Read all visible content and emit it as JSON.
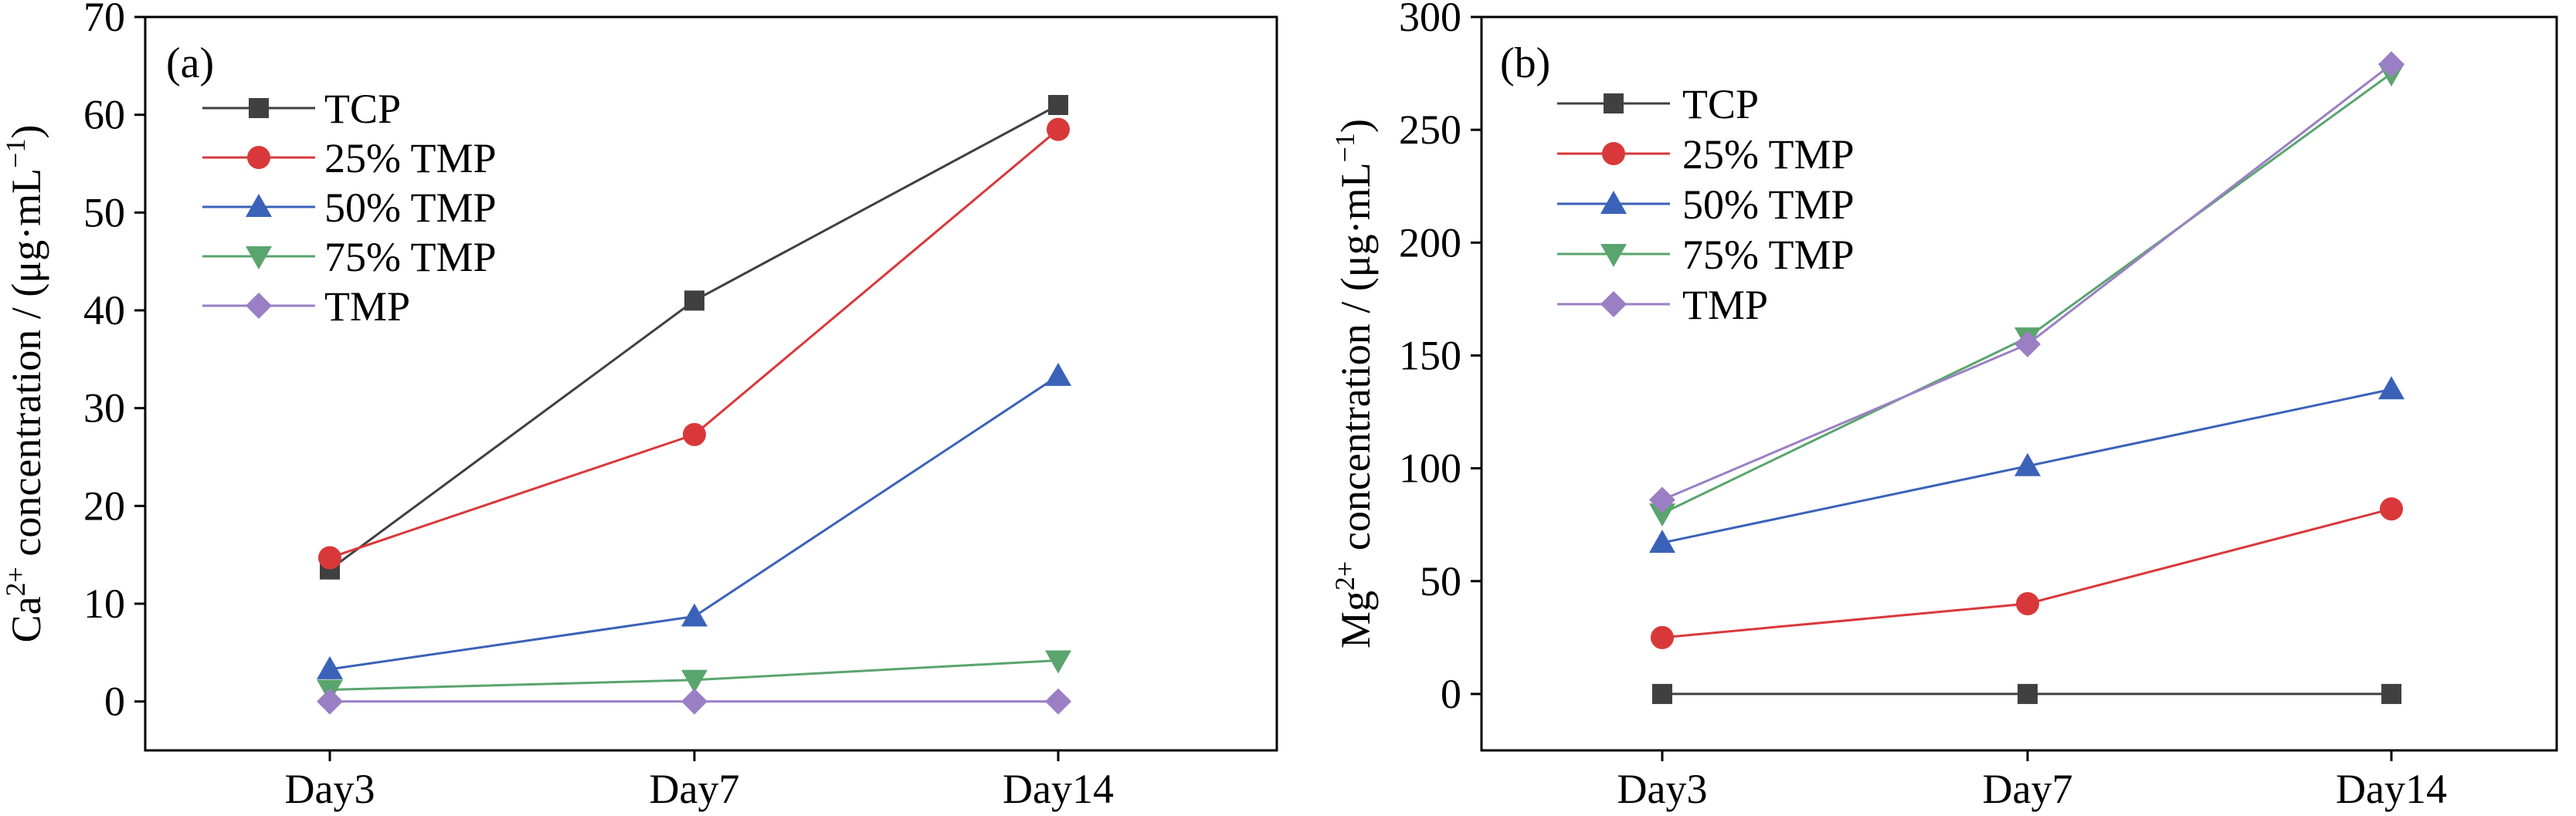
{
  "colors": {
    "TCP": "#404040",
    "25% TMP": "#d9383a",
    "50% TMP": "#3a62b8",
    "75% TMP": "#5aa46e",
    "TMP": "#9b7fc4"
  },
  "chart_data": [
    {
      "type": "line",
      "panel": "(a)",
      "categories": [
        "Day3",
        "Day7",
        "Day14"
      ],
      "ylabel": "Ca²⁺ concentration / (μg·mL⁻¹)",
      "ylabel_parts": {
        "base": "Ca",
        "sup": "2+",
        "rest": " concentration / (μg·mL",
        "unit_sup": "−1",
        "close": ")"
      },
      "ylim": [
        -5,
        70
      ],
      "yticks": [
        0,
        10,
        20,
        30,
        40,
        50,
        60,
        70
      ],
      "legend_position": "top-left",
      "series": [
        {
          "name": "TCP",
          "marker": "square",
          "values": [
            13.5,
            41.0,
            61.0
          ]
        },
        {
          "name": "25% TMP",
          "marker": "circle",
          "values": [
            14.7,
            27.3,
            58.5
          ]
        },
        {
          "name": "50% TMP",
          "marker": "triangle-up",
          "values": [
            3.3,
            8.7,
            33.3
          ]
        },
        {
          "name": "75% TMP",
          "marker": "triangle-down",
          "values": [
            1.2,
            2.2,
            4.2
          ]
        },
        {
          "name": "TMP",
          "marker": "diamond",
          "values": [
            0.0,
            0.0,
            0.0
          ]
        }
      ]
    },
    {
      "type": "line",
      "panel": "(b)",
      "categories": [
        "Day3",
        "Day7",
        "Day14"
      ],
      "ylabel": "Mg²⁺ concentration / (μg·mL⁻¹)",
      "ylabel_parts": {
        "base": "Mg",
        "sup": "2+",
        "rest": " concentration / (μg·mL",
        "unit_sup": "−1",
        "close": ")"
      },
      "ylim": [
        -25,
        300
      ],
      "yticks": [
        0,
        50,
        100,
        150,
        200,
        250,
        300
      ],
      "legend_position": "top-left",
      "series": [
        {
          "name": "TCP",
          "marker": "square",
          "values": [
            0,
            0,
            0
          ]
        },
        {
          "name": "25% TMP",
          "marker": "circle",
          "values": [
            25,
            40,
            82
          ]
        },
        {
          "name": "50% TMP",
          "marker": "triangle-up",
          "values": [
            67,
            101,
            135
          ]
        },
        {
          "name": "75% TMP",
          "marker": "triangle-down",
          "values": [
            80,
            158,
            275
          ]
        },
        {
          "name": "TMP",
          "marker": "diamond",
          "values": [
            86,
            155,
            279
          ]
        }
      ]
    }
  ]
}
